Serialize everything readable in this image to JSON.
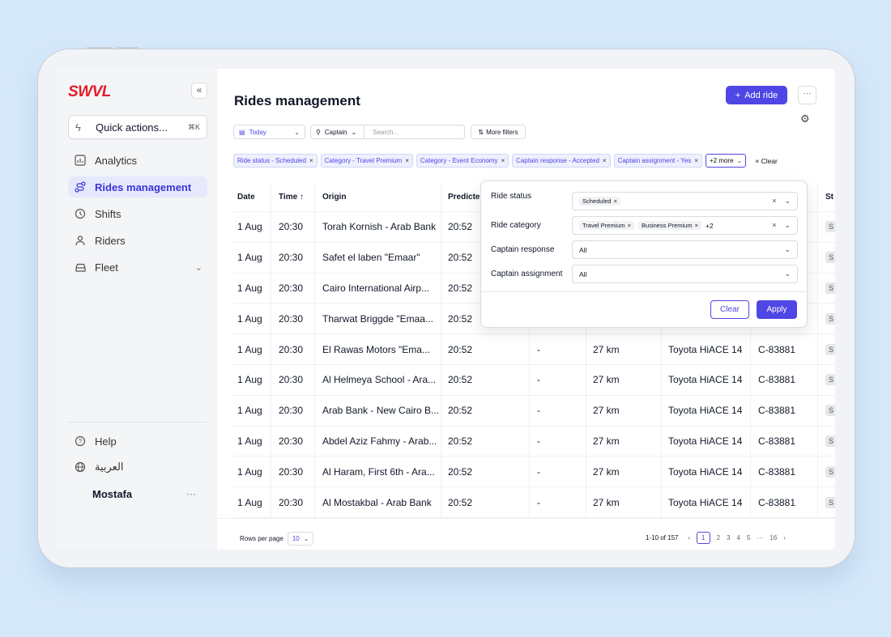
{
  "brand": {
    "logo": "SWVL"
  },
  "sidebar": {
    "quick_actions": {
      "label": "Quick actions...",
      "shortcut": "⌘K"
    },
    "items": [
      {
        "label": "Analytics",
        "active": false
      },
      {
        "label": "Rides management",
        "active": true
      },
      {
        "label": "Shifts",
        "active": false
      },
      {
        "label": "Riders",
        "active": false
      },
      {
        "label": "Fleet",
        "active": false
      }
    ],
    "bottom": {
      "help": "Help",
      "language": "العربية",
      "user": "Mostafa",
      "user_menu": "···"
    }
  },
  "header": {
    "title": "Rides management",
    "add_button": "Add ride",
    "more_button": "···"
  },
  "filters": {
    "date": "Today",
    "search_scope": "Captain",
    "search_placeholder": "Search...",
    "more_filters": "More filters",
    "chips": [
      "Ride status - Scheduled",
      "Category - Travel Premium",
      "Category - Event Economy",
      "Captain response - Accepted",
      "Captain assignment - Yes"
    ],
    "more_chip": "+2 more",
    "clear": "Clear"
  },
  "table": {
    "columns": [
      "Date",
      "Time ↑",
      "Origin",
      "Predicted",
      "",
      "",
      "",
      "",
      "St"
    ],
    "rows": [
      {
        "date": "1 Aug",
        "time": "20:30",
        "origin": "Torah Kornish - Arab Bank",
        "predicted": "20:52",
        "x": "",
        "dist": "",
        "vehicle": "",
        "plate": "",
        "status": "S"
      },
      {
        "date": "1 Aug",
        "time": "20:30",
        "origin": "Safet el laben  \"Emaar\"",
        "predicted": "20:52",
        "x": "",
        "dist": "",
        "vehicle": "",
        "plate": "",
        "status": "S"
      },
      {
        "date": "1 Aug",
        "time": "20:30",
        "origin": "Cairo International Airp...",
        "predicted": "20:52",
        "x": "",
        "dist": "",
        "vehicle": "",
        "plate": "",
        "status": "S"
      },
      {
        "date": "1 Aug",
        "time": "20:30",
        "origin": "Tharwat Briggde \"Emaa...",
        "predicted": "20:52",
        "x": "",
        "dist": "",
        "vehicle": "",
        "plate": "",
        "status": "S"
      },
      {
        "date": "1 Aug",
        "time": "20:30",
        "origin": "El Rawas Motors  \"Ema...",
        "predicted": "20:52",
        "x": "-",
        "dist": "27 km",
        "vehicle": "Toyota HiACE 14",
        "plate": "C-83881",
        "status": "S"
      },
      {
        "date": "1 Aug",
        "time": "20:30",
        "origin": "Al Helmeya School - Ara...",
        "predicted": "20:52",
        "x": "-",
        "dist": "27 km",
        "vehicle": "Toyota HiACE 14",
        "plate": "C-83881",
        "status": "S"
      },
      {
        "date": "1 Aug",
        "time": "20:30",
        "origin": "Arab Bank - New Cairo B...",
        "predicted": "20:52",
        "x": "-",
        "dist": "27 km",
        "vehicle": "Toyota HiACE 14",
        "plate": "C-83881",
        "status": "S"
      },
      {
        "date": "1 Aug",
        "time": "20:30",
        "origin": "Abdel Aziz Fahmy - Arab...",
        "predicted": "20:52",
        "x": "-",
        "dist": "27 km",
        "vehicle": "Toyota HiACE 14",
        "plate": "C-83881",
        "status": "S"
      },
      {
        "date": "1 Aug",
        "time": "20:30",
        "origin": "Al Haram, First 6th - Ara...",
        "predicted": "20:52",
        "x": "-",
        "dist": "27 km",
        "vehicle": "Toyota HiACE 14",
        "plate": "C-83881",
        "status": "S"
      },
      {
        "date": "1 Aug",
        "time": "20:30",
        "origin": "Al Mostakbal - Arab Bank",
        "predicted": "20:52",
        "x": "-",
        "dist": "27 km",
        "vehicle": "Toyota HiACE 14",
        "plate": "C-83881",
        "status": "S"
      }
    ]
  },
  "footer": {
    "rows_per_page_label": "Rows per page",
    "rows_per_page": "10",
    "range": "1-10 of 157",
    "pages": [
      "1",
      "2",
      "3",
      "4",
      "5",
      "···",
      "16"
    ],
    "current_page": "1"
  },
  "popover": {
    "fields": [
      {
        "label": "Ride status",
        "tags": [
          "Scheduled"
        ],
        "value": "",
        "extra": ""
      },
      {
        "label": "Ride category",
        "tags": [
          "Travel Premium",
          "Business Premium"
        ],
        "value": "",
        "extra": "+2"
      },
      {
        "label": "Captain response",
        "tags": [],
        "value": "All",
        "extra": ""
      },
      {
        "label": "Captain assignment",
        "tags": [],
        "value": "All",
        "extra": ""
      }
    ],
    "clear": "Clear",
    "apply": "Apply"
  },
  "colors": {
    "accent": "#4f46e5",
    "brand": "#e11d2a",
    "background": "#d6e9fb"
  }
}
